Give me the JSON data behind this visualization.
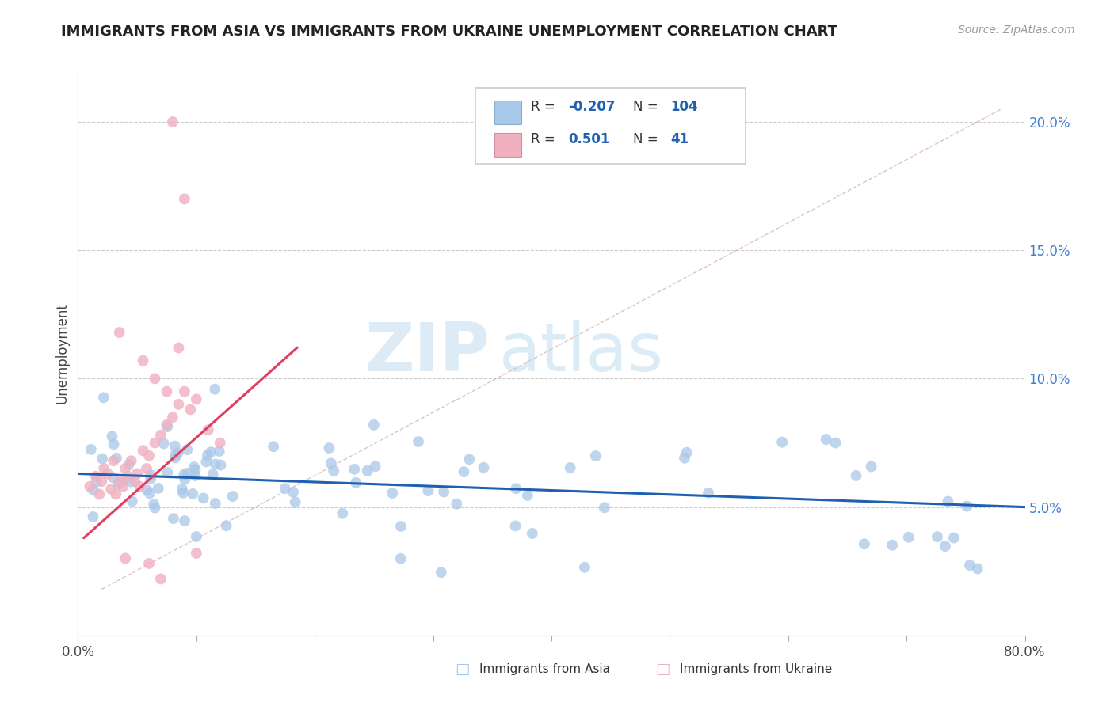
{
  "title": "IMMIGRANTS FROM ASIA VS IMMIGRANTS FROM UKRAINE UNEMPLOYMENT CORRELATION CHART",
  "source": "Source: ZipAtlas.com",
  "ylabel": "Unemployment",
  "xlim": [
    0.0,
    0.8
  ],
  "ylim": [
    0.0,
    0.22
  ],
  "legend_R_asia": "-0.207",
  "legend_N_asia": "104",
  "legend_R_ukraine": "0.501",
  "legend_N_ukraine": "41",
  "color_asia": "#a8c8e8",
  "color_ukraine": "#f0b0c0",
  "color_asia_line": "#2060b0",
  "color_ukraine_line": "#e04060",
  "color_diagonal": "#e0b0b8",
  "watermark_zip": "ZIP",
  "watermark_atlas": "atlas",
  "background_color": "#ffffff",
  "grid_color": "#cccccc",
  "title_color": "#222222",
  "source_color": "#999999",
  "ytick_color": "#3a80d0",
  "xtick_color": "#444444",
  "ylabel_color": "#444444"
}
